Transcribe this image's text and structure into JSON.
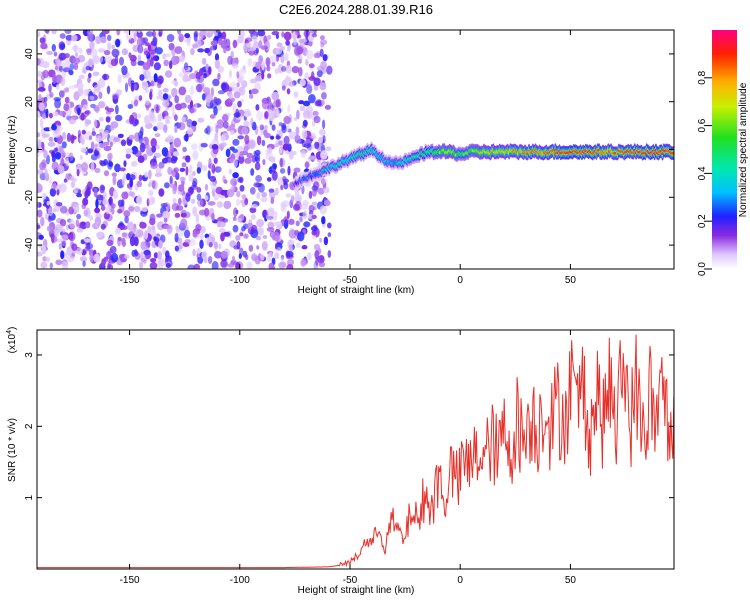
{
  "title": "C2E6.2024.288.01.39.R16",
  "colors": {
    "snr_line": "#e8302a",
    "frame": "#000000",
    "ridge_low": "#3ad8ff",
    "ridge_mid": "#1fe020",
    "ridge_high": "#ff2000",
    "noise": "#7b20ff"
  },
  "chart_data": [
    {
      "type": "heatmap",
      "xlabel": "Height of straight line (km)",
      "ylabel": "Frequency (Hz)",
      "xlim": [
        -192,
        97
      ],
      "ylim": [
        -50,
        50
      ],
      "xticks": [
        -150,
        -100,
        -50,
        0,
        50
      ],
      "xtick_labels": [
        "-150",
        "-100",
        "-50",
        "0",
        "50"
      ],
      "yticks": [
        -40,
        -20,
        0,
        20,
        40
      ],
      "ytick_labels": [
        "-40",
        "-20",
        "0",
        "20",
        "40"
      ],
      "grid": false,
      "noise_region": {
        "x_from": -192,
        "x_to": -62,
        "amplitude_range": [
          0.0,
          0.3
        ]
      },
      "ridge": {
        "x": [
          -75,
          -70,
          -65,
          -60,
          -55,
          -50,
          -45,
          -40,
          -35,
          -30,
          -25,
          -20,
          -15,
          -10,
          -5,
          0,
          5,
          10,
          20,
          30,
          40,
          50,
          60,
          70,
          80,
          90,
          97
        ],
        "frequency": [
          -14,
          -12,
          -10,
          -8,
          -6,
          -4,
          -2,
          0,
          -4,
          -6,
          -5,
          -3,
          -1,
          -1,
          -1,
          -2,
          -1,
          -1,
          -1,
          -1,
          -1,
          -1,
          -1,
          -1,
          -1,
          -1,
          -1
        ],
        "amplitude": [
          0.2,
          0.25,
          0.3,
          0.35,
          0.4,
          0.4,
          0.45,
          0.4,
          0.35,
          0.35,
          0.4,
          0.45,
          0.5,
          0.6,
          0.7,
          0.55,
          0.6,
          0.7,
          0.75,
          0.8,
          0.85,
          0.95,
          0.9,
          0.85,
          0.9,
          0.95,
          0.9
        ]
      },
      "colorbar": {
        "label": "Normalized spectral amplitude",
        "range": [
          0.0,
          1.0
        ],
        "ticks": [
          0.0,
          0.2,
          0.4,
          0.6,
          0.8
        ],
        "tick_labels": [
          "0.0",
          "0.2",
          "0.4",
          "0.6",
          "0.8"
        ]
      }
    },
    {
      "type": "line",
      "xlabel": "Height of straight line (km)",
      "ylabel": "SNR (10 * v/v)",
      "scale_label": "(x10",
      "scale_exponent": "4",
      "scale_close": ")",
      "xlim": [
        -192,
        97
      ],
      "ylim": [
        0,
        3.35
      ],
      "xticks": [
        -150,
        -100,
        -50,
        0,
        50
      ],
      "xtick_labels": [
        "-150",
        "-100",
        "-50",
        "0",
        "50"
      ],
      "yticks": [
        1,
        2,
        3
      ],
      "ytick_labels": [
        "1",
        "2",
        "3"
      ],
      "grid": false,
      "series": [
        {
          "x": [
            -192,
            -160,
            -130,
            -100,
            -80,
            -60,
            -55,
            -50,
            -46,
            -43,
            -40,
            -37,
            -34,
            -31,
            -28,
            -25,
            -22,
            -19,
            -16,
            -13,
            -10,
            -7,
            -4,
            -1,
            2,
            5,
            8,
            11,
            14,
            17,
            20,
            23,
            26,
            29,
            32,
            35,
            38,
            41,
            44,
            47,
            50,
            53,
            56,
            59,
            62,
            65,
            68,
            71,
            74,
            77,
            80,
            83,
            86,
            89,
            92,
            95,
            97
          ],
          "y": [
            0.02,
            0.02,
            0.02,
            0.02,
            0.02,
            0.03,
            0.05,
            0.1,
            0.2,
            0.4,
            0.35,
            0.6,
            0.3,
            0.7,
            0.5,
            0.4,
            0.9,
            0.6,
            1.1,
            0.8,
            1.3,
            1.0,
            1.4,
            1.2,
            1.5,
            1.4,
            1.7,
            1.5,
            1.8,
            1.6,
            1.9,
            1.7,
            2.1,
            1.8,
            2.2,
            1.9,
            2.4,
            2.0,
            2.3,
            2.1,
            2.5,
            2.2,
            2.6,
            1.9,
            2.5,
            2.0,
            2.7,
            1.8,
            3.1,
            2.0,
            2.6,
            1.7,
            2.5,
            1.9,
            2.6,
            1.8,
            2.4
          ]
        }
      ]
    }
  ]
}
